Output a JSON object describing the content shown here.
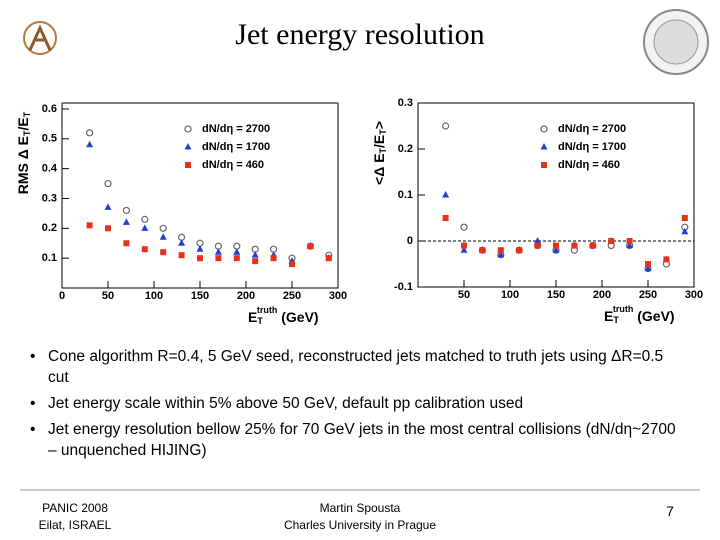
{
  "title": "Jet energy resolution",
  "bullets": [
    "Cone algorithm R=0.4, 5 GeV seed, reconstructed jets matched to truth jets using ΔR=0.5 cut",
    "Jet energy scale within 5% above 50 GeV, default pp calibration used",
    "Jet energy resolution bellow 25% for 70 GeV jets in the most central collisions (dN/dη~2700 – unquenched HIJING)"
  ],
  "footer": {
    "left": [
      "PANIC 2008",
      "Eilat, ISRAEL"
    ],
    "center": [
      "Martin Spousta",
      "Charles University in Prague"
    ],
    "page": "7"
  },
  "chart_data": [
    {
      "type": "scatter",
      "x_label": [
        {
          "text": "E"
        },
        {
          "text": "T",
          "sub": true
        },
        {
          "text": "truth",
          "sup": true
        },
        {
          "text": " (GeV)"
        }
      ],
      "y_label": [
        {
          "text": "RMS Δ E"
        },
        {
          "text": "T",
          "sub": true
        },
        {
          "text": "/E"
        },
        {
          "text": "T",
          "sub": true
        }
      ],
      "x": [
        30,
        50,
        70,
        90,
        110,
        130,
        150,
        170,
        190,
        210,
        230,
        250,
        270,
        290
      ],
      "xlim": [
        0,
        300
      ],
      "xticks": [
        0,
        50,
        100,
        150,
        200,
        250,
        300
      ],
      "ylim": [
        0,
        0.62
      ],
      "yticks": [
        0.1,
        0.2,
        0.3,
        0.4,
        0.5,
        0.6
      ],
      "legend": "upper right",
      "zero_line": false,
      "series": [
        {
          "name": "dN/dη = 2700",
          "color": "#666666",
          "marker": "open-circle",
          "values": [
            0.52,
            0.35,
            0.26,
            0.23,
            0.2,
            0.17,
            0.15,
            0.14,
            0.14,
            0.13,
            0.13,
            0.1,
            0.14,
            0.11
          ]
        },
        {
          "name": "dN/dη = 1700",
          "color": "#1f3fd6",
          "marker": "triangle",
          "values": [
            0.48,
            0.27,
            0.22,
            0.2,
            0.17,
            0.15,
            0.13,
            0.12,
            0.12,
            0.11,
            0.11,
            0.09,
            0.14,
            0.1
          ]
        },
        {
          "name": "dN/dη = 460",
          "color": "#e8301c",
          "marker": "square",
          "values": [
            0.21,
            0.2,
            0.15,
            0.13,
            0.12,
            0.11,
            0.1,
            0.1,
            0.1,
            0.09,
            0.1,
            0.08,
            0.14,
            0.1
          ]
        }
      ]
    },
    {
      "type": "scatter",
      "x_label": [
        {
          "text": "E"
        },
        {
          "text": "T",
          "sub": true
        },
        {
          "text": "truth",
          "sup": true
        },
        {
          "text": " (GeV)"
        }
      ],
      "y_label": [
        {
          "text": "<Δ E"
        },
        {
          "text": "T",
          "sub": true
        },
        {
          "text": "/E"
        },
        {
          "text": "T",
          "sub": true
        },
        {
          "text": ">"
        }
      ],
      "x": [
        30,
        50,
        70,
        90,
        110,
        130,
        150,
        170,
        190,
        210,
        230,
        250,
        270,
        290
      ],
      "xlim": [
        0,
        300
      ],
      "xticks": [
        50,
        100,
        150,
        200,
        250,
        300
      ],
      "ylim": [
        -0.1,
        0.3
      ],
      "yticks": [
        -0.1,
        0,
        0.1,
        0.2,
        0.3
      ],
      "legend": "upper right",
      "zero_line": true,
      "series": [
        {
          "name": "dN/dη = 2700",
          "color": "#666666",
          "marker": "open-circle",
          "values": [
            0.25,
            0.03,
            -0.02,
            -0.03,
            -0.02,
            -0.01,
            -0.02,
            -0.02,
            -0.01,
            -0.01,
            -0.01,
            -0.06,
            -0.05,
            0.03
          ]
        },
        {
          "name": "dN/dη = 1700",
          "color": "#1f3fd6",
          "marker": "triangle",
          "values": [
            0.1,
            -0.02,
            -0.02,
            -0.03,
            -0.02,
            0.0,
            -0.02,
            -0.01,
            -0.01,
            0.0,
            -0.01,
            -0.06,
            -0.04,
            0.02
          ]
        },
        {
          "name": "dN/dη = 460",
          "color": "#e8301c",
          "marker": "square",
          "values": [
            0.05,
            -0.01,
            -0.02,
            -0.02,
            -0.02,
            -0.01,
            -0.01,
            -0.01,
            -0.01,
            0.0,
            0.0,
            -0.05,
            -0.04,
            0.05
          ]
        }
      ]
    }
  ]
}
